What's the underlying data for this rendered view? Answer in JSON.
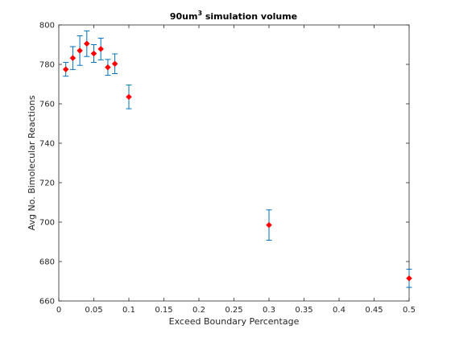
{
  "chart_data": {
    "type": "scatter",
    "title": "90um",
    "title_superscript": "3",
    "title_suffix": " simulation volume",
    "xlabel": "Exceed Boundary Percentage",
    "ylabel": "Avg No. Bimolecular Reactions",
    "xlim": [
      0,
      0.5
    ],
    "ylim": [
      660,
      800
    ],
    "xticks": [
      "0",
      "0.05",
      "0.1",
      "0.15",
      "0.2",
      "0.25",
      "0.3",
      "0.35",
      "0.4",
      "0.45",
      "0.5"
    ],
    "yticks": [
      "660",
      "680",
      "700",
      "720",
      "740",
      "760",
      "780",
      "800"
    ],
    "grid": false,
    "marker_color": "#ff0000",
    "errorbar_color": "#0072bd",
    "points": [
      {
        "x": 0.01,
        "y": 777.5,
        "err": 3.5
      },
      {
        "x": 0.02,
        "y": 783.2,
        "err": 5.8
      },
      {
        "x": 0.03,
        "y": 787.0,
        "err": 7.5
      },
      {
        "x": 0.04,
        "y": 790.5,
        "err": 6.5
      },
      {
        "x": 0.05,
        "y": 785.5,
        "err": 4.5
      },
      {
        "x": 0.06,
        "y": 787.8,
        "err": 5.5
      },
      {
        "x": 0.07,
        "y": 778.5,
        "err": 4.0
      },
      {
        "x": 0.08,
        "y": 780.3,
        "err": 5.0
      },
      {
        "x": 0.1,
        "y": 763.5,
        "err": 6.0
      },
      {
        "x": 0.3,
        "y": 698.5,
        "err": 7.7
      },
      {
        "x": 0.5,
        "y": 671.5,
        "err": 4.6
      }
    ]
  }
}
